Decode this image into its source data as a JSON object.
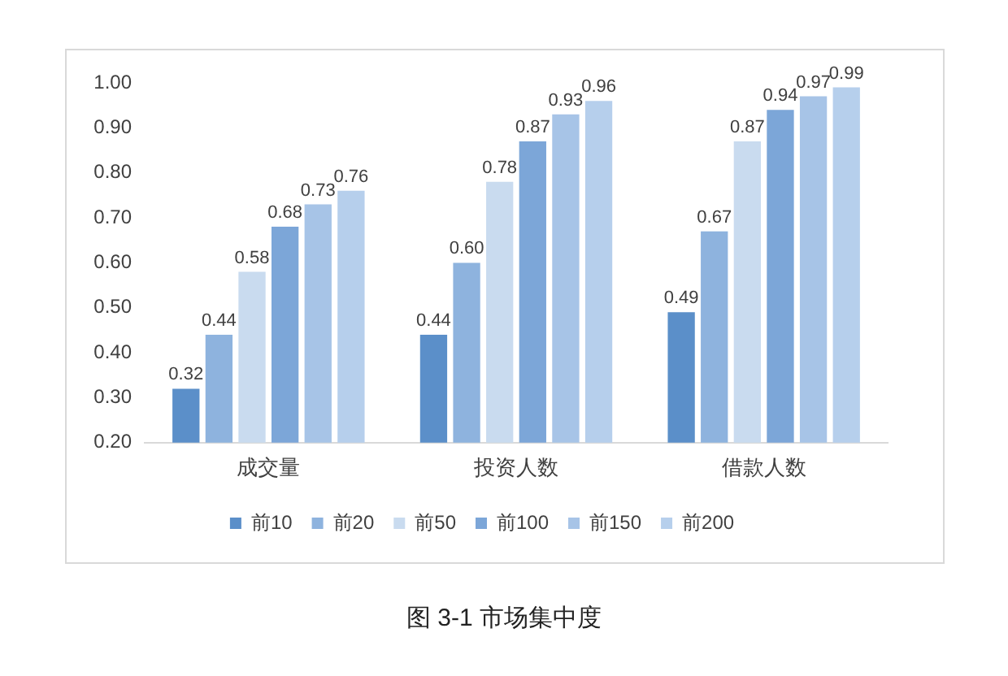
{
  "chart_data": {
    "type": "bar",
    "categories": [
      "成交量",
      "投资人数",
      "借款人数"
    ],
    "series": [
      {
        "name": "前10",
        "color": "#5b8fc9",
        "values": [
          0.32,
          0.44,
          0.49
        ],
        "value_labels": [
          "0.32",
          "0.44",
          "0.49"
        ]
      },
      {
        "name": "前20",
        "color": "#8eb3de",
        "values": [
          0.44,
          0.6,
          0.67
        ],
        "value_labels": [
          "0.44",
          "0.60",
          "0.67"
        ]
      },
      {
        "name": "前50",
        "color": "#c9dbef",
        "values": [
          0.58,
          0.78,
          0.87
        ],
        "value_labels": [
          "0.58",
          "0.78",
          "0.87"
        ]
      },
      {
        "name": "前100",
        "color": "#7ca6d8",
        "values": [
          0.68,
          0.87,
          0.94
        ],
        "value_labels": [
          "0.68",
          "0.87",
          "0.94"
        ]
      },
      {
        "name": "前150",
        "color": "#a7c4e7",
        "values": [
          0.73,
          0.93,
          0.97
        ],
        "value_labels": [
          "0.73",
          "0.93",
          "0.97"
        ]
      },
      {
        "name": "前200",
        "color": "#b6cfec",
        "values": [
          0.76,
          0.96,
          0.99
        ],
        "value_labels": [
          "0.76",
          "0.96",
          "0.99"
        ]
      }
    ],
    "ylim": [
      0.2,
      1.0
    ],
    "yticks": [
      {
        "value": 0.2,
        "label": "0.20"
      },
      {
        "value": 0.3,
        "label": "0.30"
      },
      {
        "value": 0.4,
        "label": "0.40"
      },
      {
        "value": 0.5,
        "label": "0.50"
      },
      {
        "value": 0.6,
        "label": "0.60"
      },
      {
        "value": 0.7,
        "label": "0.70"
      },
      {
        "value": 0.8,
        "label": "0.80"
      },
      {
        "value": 0.9,
        "label": "0.90"
      },
      {
        "value": 1.0,
        "label": "1.00"
      }
    ],
    "grid": false,
    "legend": "bottom",
    "annotations": [
      "图 3-1 市场集中度"
    ]
  }
}
